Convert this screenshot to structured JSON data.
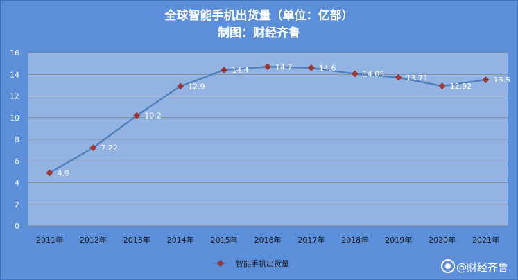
{
  "chart_data": {
    "type": "line",
    "title": "全球智能手机出货量（单位：亿部）",
    "subtitle": "制图：财经齐鲁",
    "categories": [
      "2011年",
      "2012年",
      "2013年",
      "2014年",
      "2015年",
      "2016年",
      "2017年",
      "2018年",
      "2019年",
      "2020年",
      "2021年"
    ],
    "series": [
      {
        "name": "智能手机出货量",
        "values": [
          4.9,
          7.22,
          10.2,
          12.9,
          14.4,
          14.7,
          14.6,
          14.05,
          13.71,
          12.92,
          13.5
        ]
      }
    ],
    "ylim": [
      0,
      16
    ],
    "yticks": [
      "0",
      "2",
      "4",
      "6",
      "8",
      "10",
      "12",
      "14",
      "16"
    ],
    "xlabel": "",
    "ylabel": "",
    "grid": true,
    "legend": "bottom",
    "colors": {
      "line": "#4f81bd",
      "marker": "#9e3533",
      "plot_bg": "#93b4e3",
      "frame_bg": "#5b8fd9"
    }
  },
  "watermark": "@财经齐鲁"
}
